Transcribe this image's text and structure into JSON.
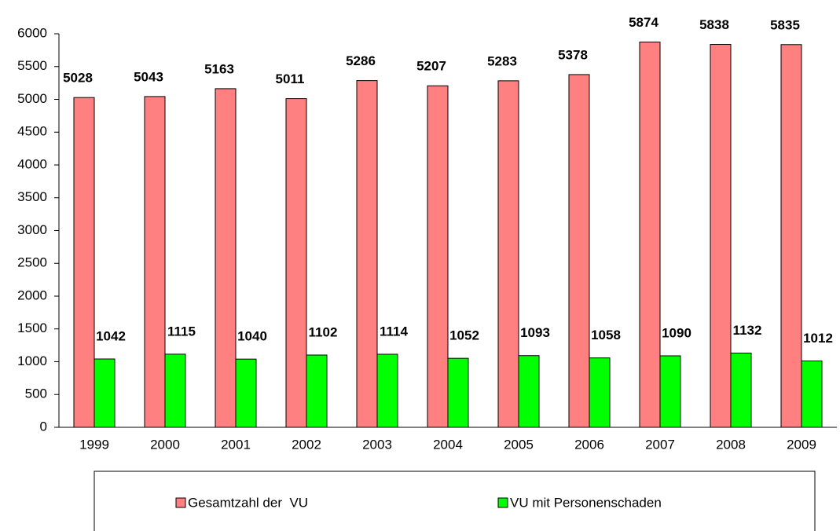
{
  "chart_data": {
    "type": "bar",
    "categories": [
      "1999",
      "2000",
      "2001",
      "2002",
      "2003",
      "2004",
      "2005",
      "2006",
      "2007",
      "2008",
      "2009"
    ],
    "series": [
      {
        "name": "Gesamtzahl der  VU",
        "color": "#ff8080",
        "values": [
          5028,
          5043,
          5163,
          5011,
          5286,
          5207,
          5283,
          5378,
          5874,
          5838,
          5835
        ]
      },
      {
        "name": "VU mit Personenschaden",
        "color": "#00ff00",
        "values": [
          1042,
          1115,
          1040,
          1102,
          1114,
          1052,
          1093,
          1058,
          1090,
          1132,
          1012
        ]
      }
    ],
    "ylim": [
      0,
      6000
    ],
    "yticks": [
      0,
      500,
      1000,
      1500,
      2000,
      2500,
      3000,
      3500,
      4000,
      4500,
      5000,
      5500,
      6000
    ],
    "grid": false,
    "legend": "bottom"
  }
}
